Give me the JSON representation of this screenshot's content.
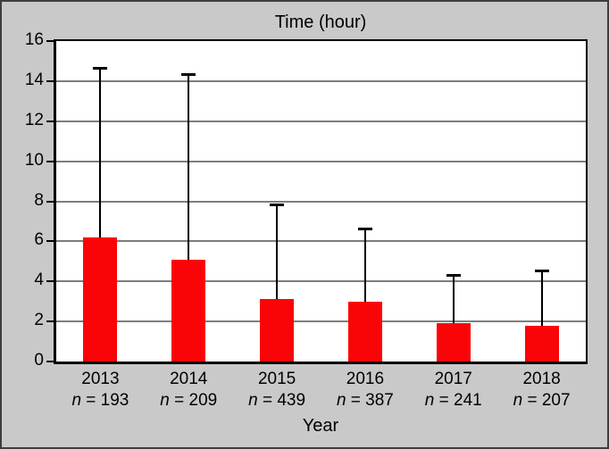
{
  "figure": {
    "background": "#c9c9c9",
    "border_color": "#3d3d3d",
    "plot_background": "#ffffff",
    "axis_color": "#000000",
    "gridline_color": "#7d7d7d",
    "text_color": "#000000"
  },
  "chart_data": {
    "type": "bar",
    "title": "Time (hour)",
    "xlabel": "Year",
    "ylabel": "",
    "ylim": [
      0,
      16
    ],
    "yticks": [
      0,
      2,
      4,
      6,
      8,
      10,
      12,
      14,
      16
    ],
    "grid": true,
    "legend_position": "none",
    "bar_color": "#fa0507",
    "categories": [
      "2013",
      "2014",
      "2015",
      "2016",
      "2017",
      "2018"
    ],
    "sample_labels": [
      "n = 193",
      "n = 209",
      "n = 439",
      "n = 387",
      "n = 241",
      "n = 207"
    ],
    "values": [
      6.2,
      5.1,
      3.1,
      3.0,
      1.9,
      1.8
    ],
    "upper_whisker": [
      14.7,
      14.4,
      7.9,
      6.7,
      4.35,
      4.6
    ],
    "error_bars": "upper only"
  }
}
